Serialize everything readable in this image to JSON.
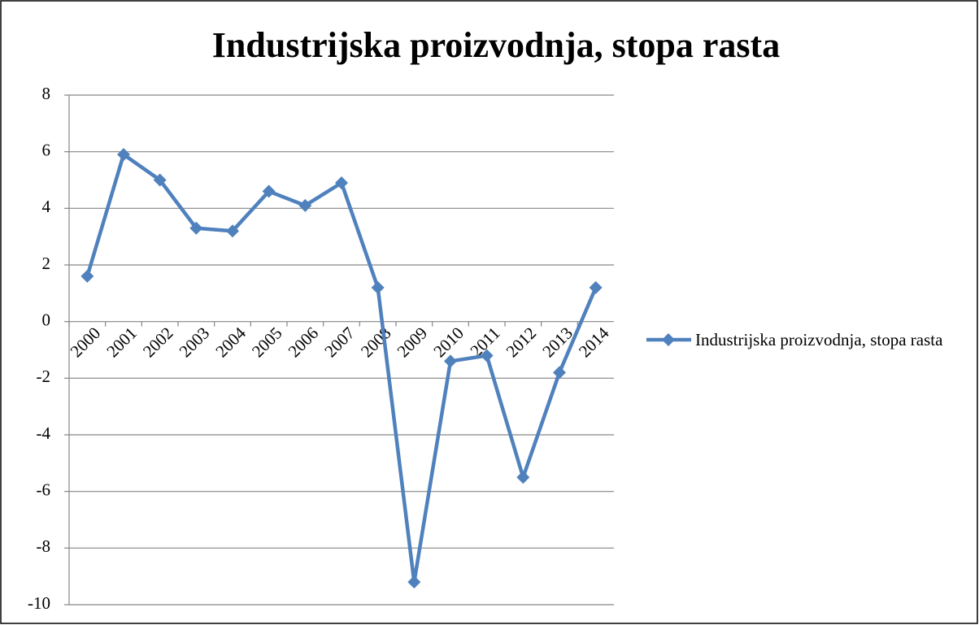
{
  "chart_data": {
    "type": "line",
    "title": "Industrijska proizvodnja, stopa rasta",
    "categories": [
      "2000",
      "2001",
      "2002",
      "2003",
      "2004",
      "2005",
      "2006",
      "2007",
      "2008",
      "2009",
      "2010",
      "2011",
      "2012",
      "2013",
      "2014"
    ],
    "series": [
      {
        "name": "Industrijska proizvodnja, stopa rasta",
        "color": "#4f81bd",
        "values": [
          1.6,
          5.9,
          5.0,
          3.3,
          3.2,
          4.6,
          4.1,
          4.9,
          1.2,
          -9.2,
          -1.4,
          -1.2,
          -5.5,
          -1.8,
          1.2
        ]
      }
    ],
    "ylim": [
      -10,
      8
    ],
    "yticks": [
      -10,
      -8,
      -6,
      -4,
      -2,
      0,
      2,
      4,
      6,
      8
    ],
    "grid": true,
    "legend": "right"
  }
}
